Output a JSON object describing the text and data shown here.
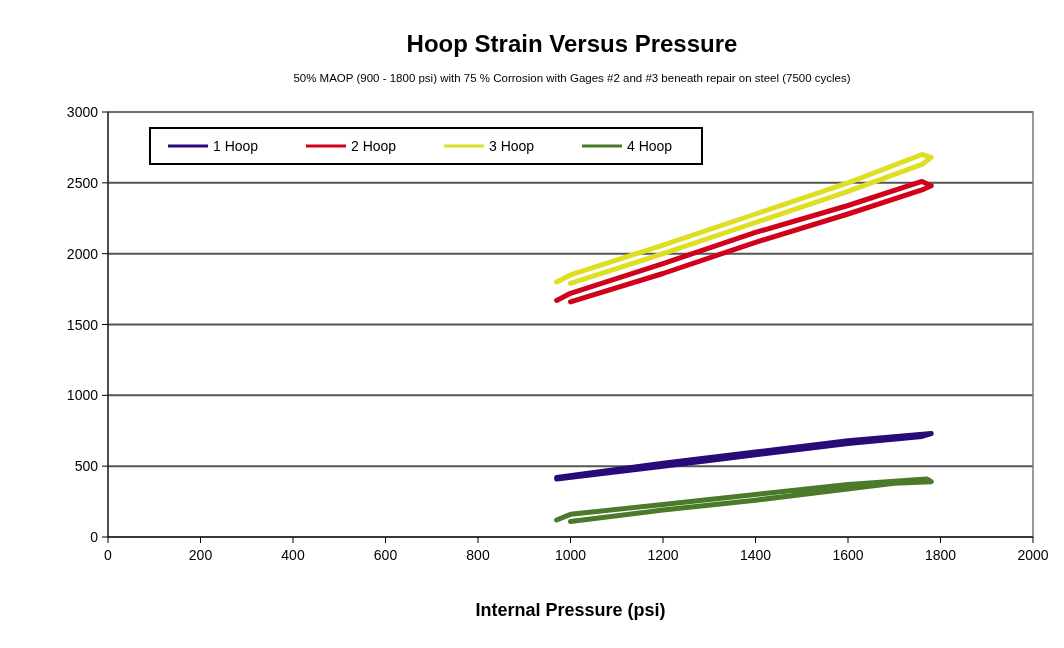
{
  "chart_data": {
    "type": "line",
    "title": "Hoop Strain Versus Pressure",
    "subtitle": "50% MAOP (900 - 1800 psi) with 75 % Corrosion with Gages #2 and #3 beneath repair on steel (7500 cycles)",
    "xlabel": "Internal Pressure (psi)",
    "xlim": [
      0,
      2000
    ],
    "xticks": [
      0,
      200,
      400,
      600,
      800,
      1000,
      1200,
      1400,
      1600,
      1800,
      2000
    ],
    "ylim": [
      0,
      3000
    ],
    "yticks": [
      0,
      500,
      1000,
      1500,
      2000,
      2500,
      3000
    ],
    "grid": "y",
    "legend": "top left",
    "marker": "none",
    "line_style": "solid",
    "series": [
      {
        "name": "1 Hoop",
        "color": "#2a0a78",
        "x": [
          970,
          1200,
          1400,
          1600,
          1780,
          1760,
          1600,
          1400,
          1200,
          970
        ],
        "values": [
          420,
          520,
          600,
          680,
          730,
          710,
          660,
          580,
          500,
          410
        ]
      },
      {
        "name": "2 Hoop",
        "color": "#d0021b",
        "x": [
          970,
          1000,
          1200,
          1400,
          1600,
          1760,
          1780,
          1760,
          1600,
          1400,
          1200,
          1000
        ],
        "values": [
          1670,
          1720,
          1930,
          2150,
          2340,
          2510,
          2480,
          2450,
          2280,
          2080,
          1860,
          1660
        ]
      },
      {
        "name": "3 Hoop",
        "color": "#dede22",
        "x": [
          970,
          1000,
          1200,
          1400,
          1600,
          1760,
          1780,
          1760,
          1600,
          1400,
          1200,
          1000
        ],
        "values": [
          1800,
          1850,
          2060,
          2280,
          2500,
          2700,
          2680,
          2630,
          2440,
          2220,
          2000,
          1790
        ]
      },
      {
        "name": "4 Hoop",
        "color": "#4a7a2a",
        "x": [
          970,
          1000,
          1200,
          1400,
          1600,
          1770,
          1780,
          1700,
          1400,
          1200,
          1000
        ],
        "values": [
          120,
          160,
          230,
          300,
          370,
          410,
          390,
          380,
          260,
          190,
          110
        ]
      }
    ]
  }
}
